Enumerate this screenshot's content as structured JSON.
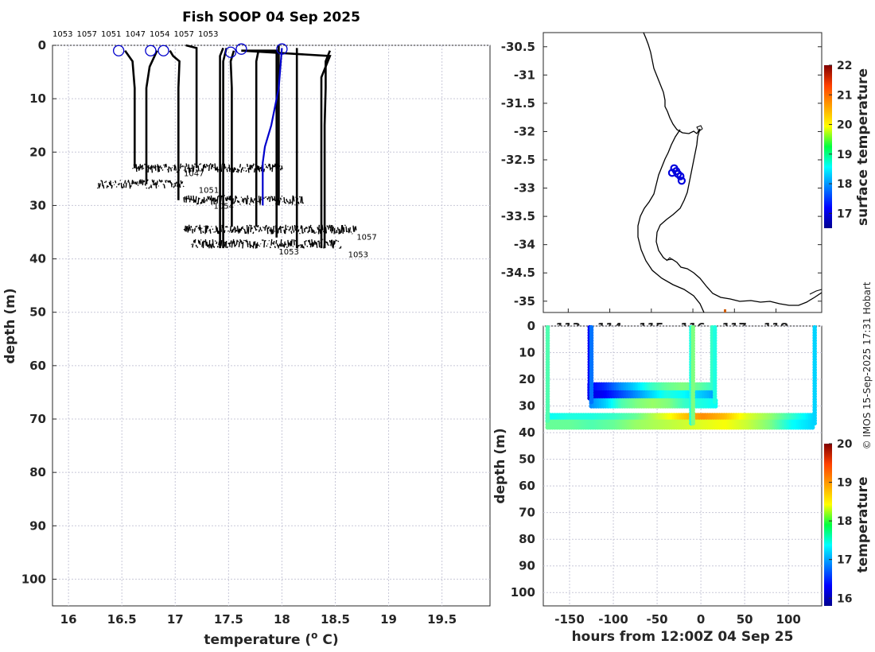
{
  "credit": "© IMOS 15-Sep-2025 17:31 Hobart",
  "chart_data": [
    {
      "type": "line",
      "title": "Fish SOOP 04 Sep 2025",
      "xlabel": "temperature (o C)",
      "xlabel_main": "temperature (",
      "xlabel_sup": "o",
      "xlabel_end": " C)",
      "ylabel": "depth (m)",
      "xlim": [
        15.85,
        19.95
      ],
      "ylim": [
        0,
        105
      ],
      "y_reversed": true,
      "grid": true,
      "xticks": [
        "16",
        "16.5",
        "17",
        "17.5",
        "18",
        "18.5",
        "19",
        "19.5"
      ],
      "yticks": [
        "0",
        "10",
        "20",
        "30",
        "40",
        "50",
        "60",
        "70",
        "80",
        "90",
        "100"
      ],
      "top_labels": [
        "1053",
        "1057",
        "1051",
        "1047",
        "1054",
        "1057",
        "1053"
      ],
      "bottom_noise": [
        {
          "x": [
            16.6,
            18.0
          ],
          "depth": 23
        },
        {
          "x": [
            16.27,
            17.08
          ],
          "depth": 26
        },
        {
          "x": [
            17.08,
            18.2
          ],
          "depth": 29
        },
        {
          "x": [
            17.08,
            18.7
          ],
          "depth": 34.5
        },
        {
          "x": [
            17.15,
            18.55
          ],
          "depth": 37.2
        }
      ],
      "bottom_labels": [
        {
          "text": "1047",
          "x": 17.08,
          "depth": 24.5
        },
        {
          "text": "1051",
          "x": 17.22,
          "depth": 27.6
        },
        {
          "text": "1054",
          "x": 17.36,
          "depth": 30.6
        },
        {
          "text": "1057",
          "x": 18.7,
          "depth": 36.4
        },
        {
          "text": "1053",
          "x": 17.97,
          "depth": 39.2
        },
        {
          "text": "1053",
          "x": 18.62,
          "depth": 39.7
        }
      ],
      "series": [
        {
          "color": "#000000",
          "points": [
            [
              16.53,
              1
            ],
            [
              16.6,
              3
            ],
            [
              16.62,
              8
            ],
            [
              16.62,
              23
            ]
          ]
        },
        {
          "color": "#000000",
          "points": [
            [
              16.83,
              1
            ],
            [
              16.76,
              4
            ],
            [
              16.73,
              8
            ],
            [
              16.73,
              26
            ]
          ]
        },
        {
          "color": "#000000",
          "points": [
            [
              16.95,
              1
            ],
            [
              16.98,
              2
            ],
            [
              17.04,
              3
            ],
            [
              17.03,
              8
            ],
            [
              17.03,
              29
            ]
          ]
        },
        {
          "color": "#000000",
          "points": [
            [
              17.1,
              0
            ],
            [
              17.2,
              0.5
            ],
            [
              17.2,
              23
            ]
          ]
        },
        {
          "color": "#000000",
          "points": [
            [
              17.45,
              0.5
            ],
            [
              17.42,
              2
            ],
            [
              17.42,
              38
            ]
          ]
        },
        {
          "color": "#000000",
          "points": [
            [
              17.48,
              0.5
            ],
            [
              17.45,
              3
            ],
            [
              17.45,
              38
            ]
          ]
        },
        {
          "color": "#000000",
          "points": [
            [
              17.55,
              1
            ],
            [
              17.52,
              3
            ],
            [
              17.53,
              8
            ],
            [
              17.53,
              34
            ]
          ]
        },
        {
          "color": "#000000",
          "points": [
            [
              17.78,
              1
            ],
            [
              17.76,
              3
            ],
            [
              17.76,
              34
            ]
          ]
        },
        {
          "color": "#000000",
          "points": [
            [
              17.62,
              1
            ],
            [
              17.95,
              1
            ],
            [
              17.95,
              36
            ]
          ]
        },
        {
          "color": "#000000",
          "points": [
            [
              17.97,
              0
            ],
            [
              17.97,
              30
            ]
          ]
        },
        {
          "color": "#000000",
          "points": [
            [
              18.14,
              0.5
            ],
            [
              18.14,
              38
            ]
          ]
        },
        {
          "color": "#000000",
          "points": [
            [
              17.62,
              1
            ],
            [
              18.45,
              2
            ],
            [
              18.37,
              6
            ],
            [
              18.37,
              38
            ]
          ]
        },
        {
          "color": "#000000",
          "points": [
            [
              18.45,
              1
            ],
            [
              18.41,
              3
            ],
            [
              18.41,
              8
            ],
            [
              18.4,
              15
            ],
            [
              18.4,
              38
            ]
          ]
        },
        {
          "color": "#0000cc",
          "points": [
            [
              18.0,
              0.5
            ],
            [
              17.97,
              8
            ],
            [
              17.9,
              15
            ],
            [
              17.84,
              19
            ],
            [
              17.82,
              22
            ],
            [
              17.82,
              30
            ]
          ]
        }
      ],
      "surface_markers": [
        [
          16.47,
          1
        ],
        [
          16.77,
          1
        ],
        [
          16.89,
          1
        ],
        [
          17.52,
          1.3
        ],
        [
          17.62,
          0.7
        ],
        [
          18.0,
          0.7
        ]
      ]
    },
    {
      "type": "map",
      "ylim": [
        -35.2,
        -30.25
      ],
      "xlim": [
        112.4,
        119.1
      ],
      "yticks": [
        "-30.5",
        "-31",
        "-31.5",
        "-32",
        "-32.5",
        "-33",
        "-33.5",
        "-34",
        "-34.5",
        "-35"
      ],
      "xticks": [
        "113",
        "114",
        "115",
        "116",
        "117",
        "118"
      ],
      "colorbar": {
        "label": "surface temperature",
        "min": 16.5,
        "max": 22,
        "ticks": [
          "17",
          "18",
          "19",
          "20",
          "21",
          "22"
        ]
      },
      "markers": [
        {
          "lon": 115.55,
          "lat": -32.65
        },
        {
          "lon": 115.6,
          "lat": -32.7
        },
        {
          "lon": 115.64,
          "lat": -32.75
        },
        {
          "lon": 115.7,
          "lat": -32.79
        },
        {
          "lon": 115.73,
          "lat": -32.87
        },
        {
          "lon": 115.5,
          "lat": -32.73
        }
      ]
    },
    {
      "type": "scatter",
      "xlabel": "hours from 12:00Z 04 Sep 25",
      "ylabel": "depth (m)",
      "xlim": [
        -180,
        138
      ],
      "ylim": [
        0,
        105
      ],
      "y_reversed": true,
      "grid": true,
      "xticks": [
        "-150",
        "-100",
        "-50",
        "0",
        "50",
        "100"
      ],
      "yticks": [
        "0",
        "10",
        "20",
        "30",
        "40",
        "50",
        "60",
        "70",
        "80",
        "90",
        "100"
      ],
      "colorbar": {
        "label": "temperature",
        "min": 15.8,
        "max": 20,
        "ticks": [
          "16",
          "17",
          "18",
          "19",
          "20"
        ]
      },
      "columns": [
        {
          "hours": -175,
          "depth_max": 36,
          "temp": 17.7
        },
        {
          "hours": -127,
          "depth_max": 26,
          "temp": 16.3
        },
        {
          "hours": -125,
          "depth_max": 29,
          "temp": 16.8
        },
        {
          "hours": -11,
          "depth_max": 37,
          "temp": 17.5
        },
        {
          "hours": -9,
          "depth_max": 37,
          "temp": 17.9
        },
        {
          "hours": 13,
          "depth_max": 23,
          "temp": 17.6
        },
        {
          "hours": 16,
          "depth_max": 29,
          "temp": 17.5
        },
        {
          "hours": 130,
          "depth_max": 37,
          "temp": 17.2
        }
      ],
      "bands": [
        {
          "hours": [
            -127,
            15
          ],
          "depth": 23,
          "temps": [
            16.3,
            16.5,
            16.9,
            17.2,
            17.6,
            17.8,
            17.9,
            17.8,
            17.6
          ]
        },
        {
          "hours": [
            -127,
            15
          ],
          "depth": 26,
          "temps": [
            16.2,
            16.3,
            16.6,
            16.9,
            17.2,
            17.5,
            17.4,
            17.2,
            17.0
          ]
        },
        {
          "hours": [
            -125,
            18
          ],
          "depth": 29,
          "temps": [
            16.9,
            17.2,
            17.7,
            17.9,
            18.0,
            17.9,
            17.6,
            17.5,
            17.4
          ]
        },
        {
          "hours": [
            -175,
            130
          ],
          "depth": 34.5,
          "temps": [
            17.4,
            17.5,
            17.5,
            17.6,
            17.8,
            18.2,
            18.6,
            18.9,
            18.7,
            18.3,
            18.0,
            17.6,
            17.2
          ]
        },
        {
          "hours": [
            -175,
            130
          ],
          "depth": 37,
          "temps": [
            17.8,
            17.8,
            17.7,
            17.8,
            18.0,
            18.1,
            18.2,
            18.3,
            18.4,
            18.2,
            17.9,
            17.4,
            17.2
          ]
        }
      ]
    }
  ]
}
